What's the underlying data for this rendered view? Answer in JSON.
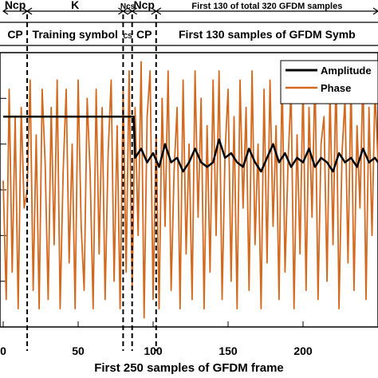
{
  "chart_data": {
    "type": "line",
    "xlabel": "First 250 samples of GFDM frame",
    "ylabel": "",
    "xlim": [
      0,
      250
    ],
    "ylim": [
      -1.5,
      1.5
    ],
    "x_ticks": [
      0,
      50,
      100,
      150,
      200
    ],
    "x_tick_labels": [
      "0",
      "50",
      "100",
      "150",
      "200"
    ],
    "grid": false,
    "legend_position": "top-right",
    "segments": [
      {
        "label": "Ncp",
        "x_start": 0,
        "x_end": 16
      },
      {
        "label": "K",
        "x_start": 16,
        "x_end": 80
      },
      {
        "label": "Ncs",
        "x_start": 80,
        "x_end": 86
      },
      {
        "label": "Ncp",
        "x_start": 86,
        "x_end": 102
      },
      {
        "label": "First 130 of total 320 GFDM samples",
        "x_start": 102,
        "x_end": 250
      }
    ],
    "regions": [
      {
        "label": "CP",
        "x_start": 0,
        "x_end": 16
      },
      {
        "label": "Training symbol",
        "x_start": 16,
        "x_end": 80
      },
      {
        "label": "CS",
        "x_start": 80,
        "x_end": 86
      },
      {
        "label": "CP",
        "x_start": 86,
        "x_end": 102
      },
      {
        "label": "First 130 samples of GFDM Symb",
        "x_start": 102,
        "x_end": 250
      }
    ],
    "dashed_boundaries_x": [
      16,
      80,
      86,
      102
    ],
    "series": [
      {
        "name": "Amplitude",
        "color": "#000000",
        "x": [
          0,
          87,
          88,
          92,
          96,
          100,
          104,
          108,
          112,
          116,
          120,
          124,
          128,
          132,
          136,
          140,
          144,
          148,
          152,
          156,
          160,
          164,
          168,
          172,
          176,
          180,
          184,
          188,
          192,
          196,
          200,
          204,
          208,
          212,
          216,
          220,
          224,
          228,
          232,
          236,
          240,
          244,
          248,
          250
        ],
        "y": [
          0.8,
          0.8,
          0.35,
          0.45,
          0.3,
          0.4,
          0.25,
          0.5,
          0.3,
          0.35,
          0.2,
          0.3,
          0.45,
          0.3,
          0.25,
          0.3,
          0.55,
          0.35,
          0.4,
          0.3,
          0.25,
          0.45,
          0.3,
          0.2,
          0.35,
          0.5,
          0.3,
          0.4,
          0.25,
          0.35,
          0.3,
          0.45,
          0.25,
          0.35,
          0.3,
          0.2,
          0.4,
          0.3,
          0.35,
          0.25,
          0.45,
          0.3,
          0.35,
          0.3
        ]
      },
      {
        "name": "Phase",
        "color": "#d2691e",
        "x": [
          0,
          2,
          4,
          6,
          8,
          10,
          12,
          14,
          16,
          18,
          20,
          22,
          24,
          26,
          28,
          30,
          32,
          34,
          36,
          38,
          40,
          42,
          44,
          46,
          48,
          50,
          52,
          54,
          56,
          58,
          60,
          62,
          64,
          66,
          68,
          70,
          72,
          74,
          76,
          78,
          80,
          82,
          84,
          86,
          88,
          90,
          92,
          94,
          96,
          98,
          100,
          102,
          104,
          106,
          108,
          110,
          112,
          114,
          116,
          118,
          120,
          122,
          124,
          126,
          128,
          130,
          132,
          134,
          136,
          138,
          140,
          142,
          144,
          146,
          148,
          150,
          152,
          154,
          156,
          158,
          160,
          162,
          164,
          166,
          168,
          170,
          172,
          174,
          176,
          178,
          180,
          182,
          184,
          186,
          188,
          190,
          192,
          194,
          196,
          198,
          200,
          202,
          204,
          206,
          208,
          210,
          212,
          214,
          216,
          218,
          220,
          222,
          224,
          226,
          228,
          230,
          232,
          234,
          236,
          238,
          240,
          242,
          244,
          246,
          248,
          250
        ],
        "y": [
          0.1,
          -1.2,
          1.1,
          -0.9,
          0.8,
          -1.3,
          0.9,
          -0.2,
          0.0,
          1.2,
          -1.1,
          0.6,
          -1.3,
          1.1,
          0.3,
          -1.2,
          0.9,
          -0.6,
          1.2,
          -1.3,
          0.2,
          1.1,
          -0.8,
          0.5,
          -1.3,
          1.2,
          -0.4,
          -1.1,
          1.0,
          0.2,
          -1.3,
          1.1,
          -0.7,
          0.9,
          -1.2,
          0.4,
          1.2,
          -1.0,
          0.7,
          -1.3,
          1.1,
          -0.9,
          1.3,
          -1.1,
          0.9,
          -0.5,
          1.4,
          -1.4,
          0.8,
          1.3,
          -1.2,
          0.6,
          -1.3,
          1.0,
          -0.4,
          1.3,
          -1.1,
          0.2,
          0.9,
          -1.3,
          1.2,
          -0.7,
          0.5,
          -1.2,
          1.3,
          -0.3,
          1.0,
          -1.3,
          0.7,
          -0.9,
          1.2,
          -0.5,
          1.3,
          -1.2,
          0.4,
          1.1,
          -1.0,
          0.8,
          -1.3,
          1.2,
          -0.2,
          0.9,
          -1.1,
          1.3,
          -0.6,
          0.5,
          -1.3,
          1.1,
          -0.8,
          1.2,
          -0.4,
          0.7,
          -1.2,
          1.3,
          -0.9,
          0.3,
          1.1,
          -1.3,
          0.6,
          -0.7,
          1.2,
          -1.1,
          0.9,
          -0.3,
          1.3,
          -1.2,
          0.5,
          0.8,
          -1.0,
          1.1,
          -0.6,
          1.3,
          -1.3,
          0.4,
          1.0,
          -0.8,
          1.2,
          -1.1,
          0.7,
          -0.2,
          1.3,
          -1.2,
          0.9,
          -0.5,
          1.1,
          0.3
        ]
      }
    ]
  }
}
